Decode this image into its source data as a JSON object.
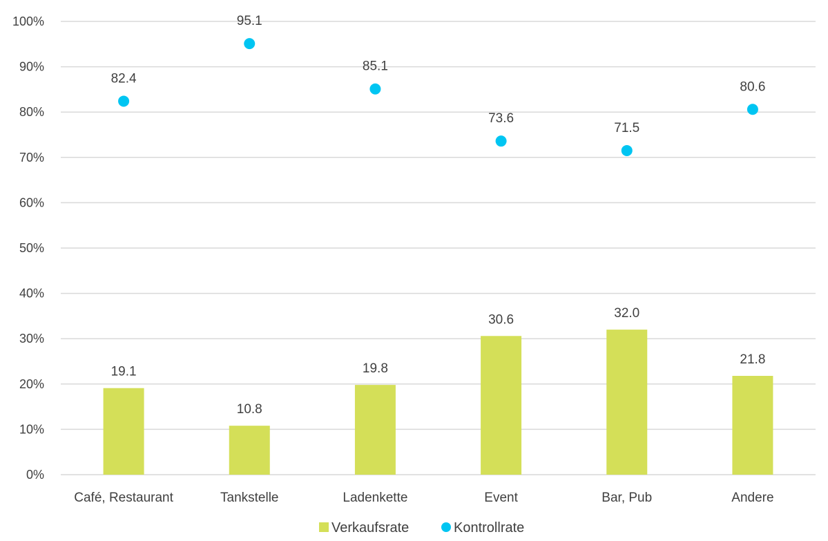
{
  "chart_data": {
    "type": "bar",
    "categories": [
      "Café, Restaurant",
      "Tankstelle",
      "Ladenkette",
      "Event",
      "Bar, Pub",
      "Andere"
    ],
    "series": [
      {
        "name": "Verkaufsrate",
        "type": "bar",
        "color": "#d4df58",
        "values": [
          19.1,
          10.8,
          19.8,
          30.6,
          32.0,
          21.8
        ]
      },
      {
        "name": "Kontrollrate",
        "type": "scatter",
        "color": "#00c5f2",
        "values": [
          82.4,
          95.1,
          85.1,
          73.6,
          71.5,
          80.6
        ]
      }
    ],
    "y_ticks": [
      "0%",
      "10%",
      "20%",
      "30%",
      "40%",
      "50%",
      "60%",
      "70%",
      "80%",
      "90%",
      "100%"
    ],
    "ylim": [
      0,
      100
    ],
    "grid": true,
    "legend_position": "bottom-center",
    "data_label_decimals": 1
  }
}
